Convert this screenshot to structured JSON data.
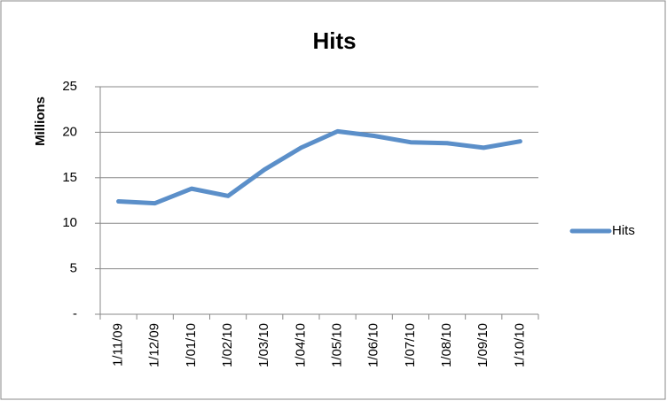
{
  "chart_data": {
    "type": "line",
    "title": "Hits",
    "y_label": "Millions",
    "categories": [
      "1/11/09",
      "1/12/09",
      "1/01/10",
      "1/02/10",
      "1/03/10",
      "1/04/10",
      "1/05/10",
      "1/06/10",
      "1/07/10",
      "1/08/10",
      "1/09/10",
      "1/10/10"
    ],
    "series": [
      {
        "name": "Hits",
        "color": "#5b8fc9",
        "values": [
          12.4,
          12.2,
          13.8,
          13.0,
          15.9,
          18.3,
          20.1,
          19.6,
          18.9,
          18.8,
          18.3,
          19.0
        ]
      }
    ],
    "ylim": [
      0,
      25
    ],
    "yticks": [
      {
        "value": 0,
        "label": "-"
      },
      5,
      10,
      15,
      20,
      25
    ],
    "grid": true,
    "legend": "right"
  }
}
